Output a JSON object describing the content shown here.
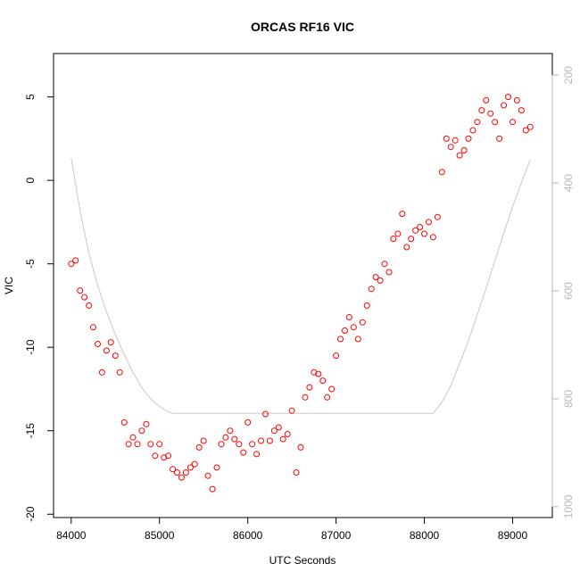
{
  "chart_data": {
    "type": "scatter",
    "title": "ORCAS RF16 VIC",
    "xlabel": "UTC Seconds",
    "ylabel": "VIC",
    "xlim": [
      83800,
      89450
    ],
    "ylim": [
      -20.2,
      7.6
    ],
    "x_ticks": [
      84000,
      85000,
      86000,
      87000,
      88000,
      89000
    ],
    "y_ticks": [
      -20,
      -15,
      -10,
      -5,
      0,
      5
    ],
    "y2_ticks": [
      200,
      400,
      600,
      800,
      1000
    ],
    "y2_lim": [
      160,
      1020
    ],
    "y2_reversed": true,
    "colors": {
      "points": "#ff0000",
      "secondary_line": "#c8c8c8",
      "secondary_axis": "#b8b8b8"
    },
    "series": [
      {
        "marker": "circle",
        "x": [
          84000,
          84050,
          84100,
          84150,
          84200,
          84250,
          84300,
          84350,
          84400,
          84450,
          84500,
          84550,
          84600,
          84650,
          84700,
          84750,
          84800,
          84850,
          84900,
          84950,
          85000,
          85050,
          85100,
          85150,
          85200,
          85250,
          85300,
          85350,
          85400,
          85450,
          85500,
          85550,
          85600,
          85650,
          85700,
          85750,
          85800,
          85850,
          85900,
          85950,
          86000,
          86050,
          86100,
          86150,
          86200,
          86250,
          86300,
          86350,
          86400,
          86450,
          86500,
          86550,
          86600,
          86650,
          86700,
          86750,
          86800,
          86850,
          86900,
          86950,
          87000,
          87050,
          87100,
          87150,
          87200,
          87250,
          87300,
          87350,
          87400,
          87450,
          87500,
          87550,
          87600,
          87650,
          87700,
          87750,
          87800,
          87850,
          87900,
          87950,
          88000,
          88050,
          88100,
          88150,
          88200,
          88250,
          88300,
          88350,
          88400,
          88450,
          88500,
          88550,
          88600,
          88650,
          88700,
          88750,
          88800,
          88850,
          88900,
          88950,
          89000,
          89050,
          89100,
          89150,
          89200
        ],
        "y": [
          -5.0,
          -4.8,
          -6.6,
          -7.0,
          -7.5,
          -8.8,
          -9.8,
          -11.5,
          -10.2,
          -9.7,
          -10.5,
          -11.5,
          -14.5,
          -15.8,
          -15.4,
          -15.8,
          -15.0,
          -14.6,
          -15.8,
          -16.5,
          -15.8,
          -16.6,
          -16.5,
          -17.3,
          -17.5,
          -17.8,
          -17.5,
          -17.2,
          -17.0,
          -16.0,
          -15.6,
          -17.7,
          -18.5,
          -17.2,
          -15.8,
          -15.4,
          -15.0,
          -15.5,
          -15.8,
          -16.3,
          -14.5,
          -15.8,
          -16.4,
          -15.6,
          -14.0,
          -15.6,
          -15.0,
          -14.8,
          -15.5,
          -15.2,
          -13.8,
          -17.5,
          -16.0,
          -13.0,
          -12.4,
          -11.5,
          -11.6,
          -12.0,
          -13.0,
          -12.5,
          -10.5,
          -9.5,
          -9.0,
          -8.2,
          -8.8,
          -9.5,
          -8.5,
          -7.5,
          -6.5,
          -5.8,
          -6.0,
          -5.0,
          -5.5,
          -3.5,
          -3.2,
          -2.0,
          -4.0,
          -3.5,
          -3.0,
          -2.8,
          -3.2,
          -2.5,
          -3.4,
          -2.2,
          0.5,
          2.5,
          2.0,
          2.4,
          1.5,
          1.8,
          2.5,
          3.0,
          3.5,
          4.2,
          4.8,
          4.0,
          3.5,
          2.5,
          4.5,
          5.0,
          3.5,
          4.8,
          4.2,
          3.0,
          3.2
        ]
      },
      {
        "type": "line",
        "axis": "right",
        "x": [
          84000,
          84100,
          84200,
          84300,
          84400,
          84500,
          84600,
          84700,
          84800,
          84900,
          85000,
          85100,
          85150,
          86000,
          87000,
          88000,
          88100,
          88200,
          88300,
          88400,
          88500,
          88600,
          88700,
          88800,
          88900,
          89000,
          89100,
          89200
        ],
        "y": [
          354,
          451,
          530,
          590,
          639,
          681,
          718,
          751,
          779,
          800,
          814,
          824,
          827,
          827,
          827,
          827,
          827,
          806,
          776,
          734,
          692,
          644,
          595,
          543,
          493,
          444,
          399,
          357
        ]
      }
    ]
  }
}
